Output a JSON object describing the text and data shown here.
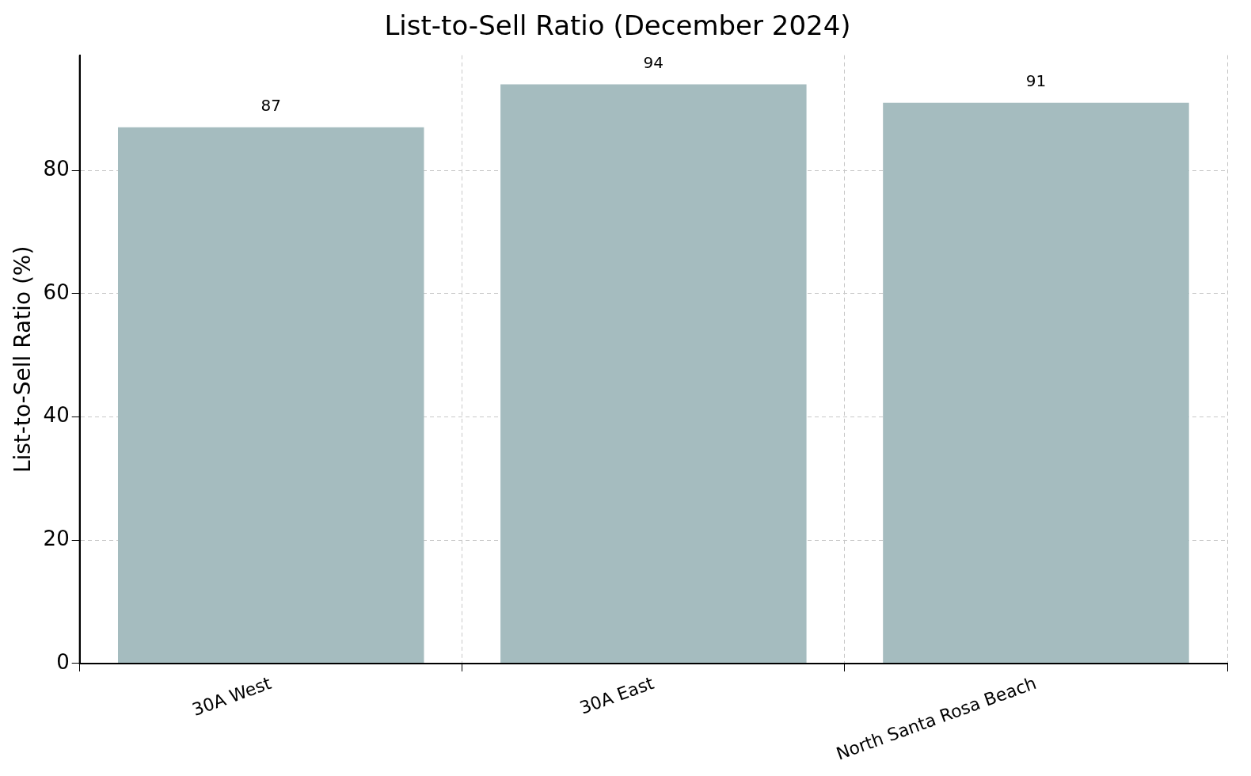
{
  "chart_data": {
    "type": "bar",
    "title": "List-to-Sell Ratio (December 2024)",
    "ylabel": "List-to-Sell Ratio (%)",
    "categories": [
      "30A West",
      "30A East",
      "North Santa Rosa Beach"
    ],
    "values": [
      87,
      94,
      91
    ],
    "color": "#a5bcbf",
    "ylim": [
      0,
      98.7
    ],
    "yticks": [
      0,
      20,
      40,
      60,
      80
    ],
    "grid": true,
    "data_labels": true
  }
}
